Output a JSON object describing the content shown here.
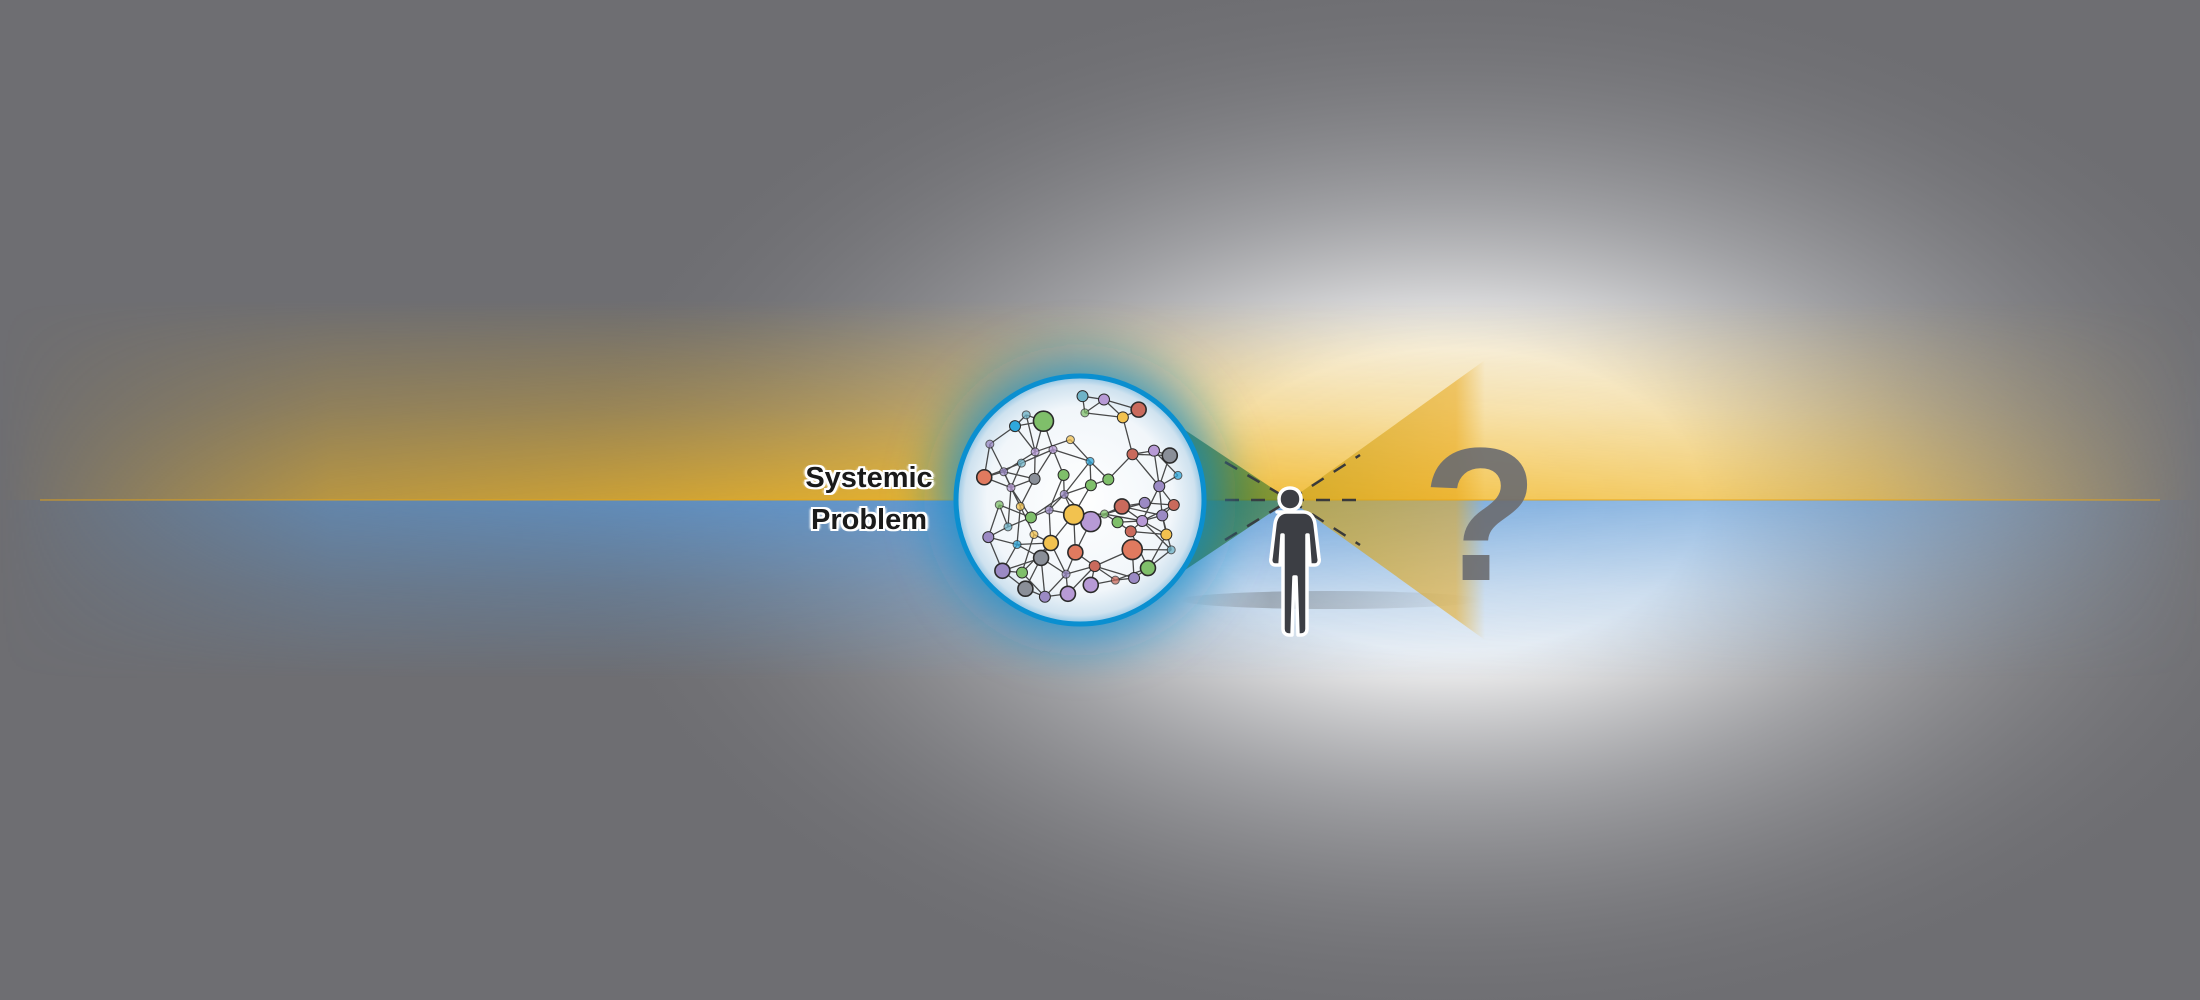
{
  "diagram": {
    "label_line1": "Systemic",
    "label_line2": "Problem",
    "question_mark": "?"
  },
  "colors": {
    "upper_glow": "#f0b41e",
    "lower_glow": "#5a9ad8",
    "sphere_ring": "#0a8fd0",
    "figure": "#3c3e44",
    "question_mark": "#6b6c70",
    "vision_cone": "#e8a81a"
  },
  "icons": {
    "network": "network-sphere-icon",
    "person": "person-silhouette-icon"
  }
}
